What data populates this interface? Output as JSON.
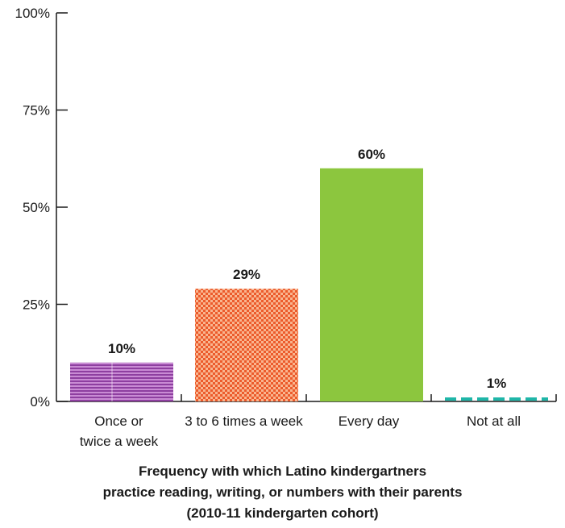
{
  "chart_data": {
    "type": "bar",
    "categories": [
      [
        "Once or",
        "twice a week"
      ],
      [
        "3 to 6 times a week"
      ],
      [
        "Every day"
      ],
      [
        "Not at all"
      ]
    ],
    "values": [
      10,
      29,
      60,
      1
    ],
    "data_labels": [
      "10%",
      "29%",
      "60%",
      "1%"
    ],
    "colors": [
      "#b05bbf",
      "#f06a3a",
      "#8cc63e",
      "#1fb6a8"
    ],
    "patterns": [
      "horizontal-stripes",
      "checkerboard",
      "solid",
      "dashes"
    ],
    "ylim": [
      0,
      100
    ],
    "yticks": [
      0,
      25,
      50,
      75,
      100
    ],
    "ytick_labels": [
      "0%",
      "25%",
      "50%",
      "75%",
      "100%"
    ],
    "xlabel_lines": [
      "Frequency with which Latino kindergartners",
      "practice reading, writing, or numbers with their parents",
      "(2010-11 kindergarten cohort)"
    ],
    "grid": false,
    "legend": "none"
  }
}
